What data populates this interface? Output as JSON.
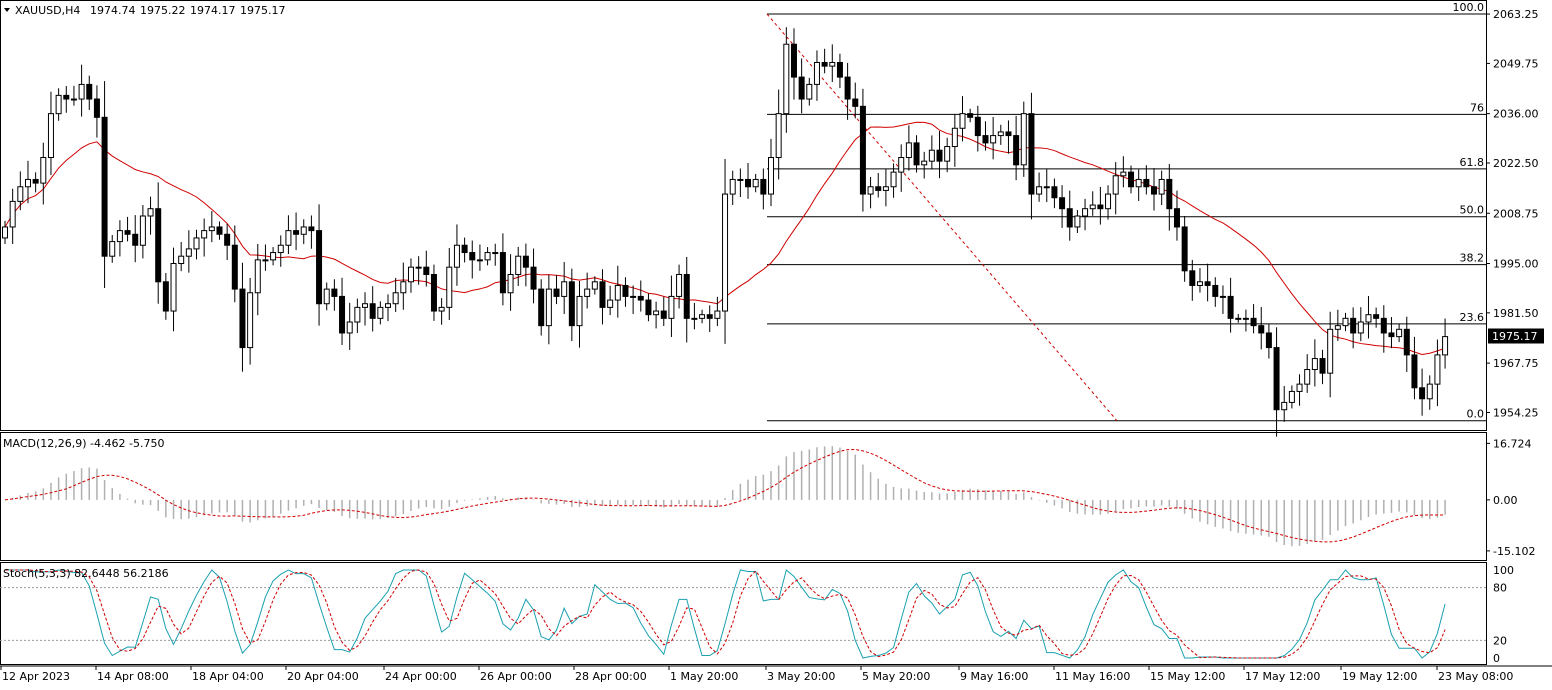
{
  "symbol_line": {
    "symbol": "XAUUSD,H4",
    "open": "1974.74",
    "high": "1975.22",
    "low": "1974.17",
    "close": "1975.17"
  },
  "current_price": "1975.17",
  "colors": {
    "background": "#ffffff",
    "candle": "#000000",
    "ma": "#d00000",
    "macd_hist": "#b0b0b0",
    "macd_signal": "#d00000",
    "stoch_main": "#1aa0b0",
    "stoch_signal": "#d00000",
    "fib_line": "#000000"
  },
  "chart_data": [
    {
      "type": "candlestick",
      "title": "XAUUSD,H4",
      "ylim": [
        1950,
        2066
      ],
      "price_ticks": [
        "2063.25",
        "2049.75",
        "2036.00",
        "2022.50",
        "2008.75",
        "1995.00",
        "1981.50",
        "1967.75",
        "1954.25"
      ],
      "time_labels": [
        "12 Apr 2023",
        "14 Apr 08:00",
        "18 Apr 04:00",
        "20 Apr 04:00",
        "24 Apr 00:00",
        "26 Apr 00:00",
        "28 Apr 00:00",
        "1 May 20:00",
        "3 May 20:00",
        "5 May 20:00",
        "9 May 16:00",
        "11 May 16:00",
        "15 May 12:00",
        "17 May 12:00",
        "19 May 12:00",
        "23 May 08:00"
      ],
      "close": [
        2005,
        2012,
        2016,
        2018,
        2017,
        2024,
        2036,
        2041,
        2040,
        2040,
        2044,
        2040,
        2035,
        1997,
        2001,
        2004,
        2003,
        2000,
        2008,
        2010,
        1990,
        1982,
        1995,
        1997,
        1999,
        2002,
        2004,
        2005,
        2003,
        2000,
        1988,
        1972,
        1987,
        1996,
        1996,
        1998,
        2000,
        2004,
        2003,
        2005,
        2004,
        1984,
        1988,
        1986,
        1976,
        1979,
        1983,
        1984,
        1980,
        1983,
        1984,
        1987,
        1990,
        1994,
        1994,
        1992,
        1982,
        1983,
        1994,
        2000,
        1998,
        1996,
        1996,
        1998,
        1998,
        1987,
        1992,
        1997,
        1994,
        1988,
        1978,
        1988,
        1986,
        1990,
        1978,
        1986,
        1988,
        1990,
        1983,
        1985,
        1989,
        1986,
        1986,
        1985,
        1981,
        1982,
        1980,
        1986,
        1992,
        1980,
        1980,
        1981,
        1980,
        1982,
        2014,
        2018,
        2018,
        2016,
        2018,
        2014,
        2024,
        2036,
        2055,
        2046,
        2040,
        2044,
        2050,
        2049,
        2050,
        2046,
        2040,
        2038,
        2014,
        2016,
        2015,
        2016,
        2020,
        2024,
        2028,
        2022,
        2023,
        2026,
        2023,
        2027,
        2032,
        2036,
        2035,
        2030,
        2028,
        2030,
        2031,
        2030,
        2022,
        2036,
        2014,
        2016,
        2016,
        2013,
        2010,
        2005,
        2008,
        2010,
        2011,
        2010,
        2014,
        2019,
        2020,
        2016,
        2018,
        2016,
        2014,
        2018,
        2010,
        2005,
        1993,
        1989,
        1990,
        1989,
        1986,
        1986,
        1980,
        1980,
        1980,
        1978,
        1976,
        1972,
        1955,
        1957,
        1960,
        1962,
        1966,
        1969,
        1965,
        1977,
        1978,
        1980,
        1976,
        1979,
        1981,
        1980,
        1976,
        1975,
        1977,
        1970,
        1961,
        1958,
        1962,
        1970,
        1975
      ]
    },
    {
      "type": "line",
      "title": "MACD(12,26,9) -4.462 -5.750",
      "indicator": "MACD",
      "params": "12,26,9",
      "main_value": "-4.462",
      "signal_value": "-5.750",
      "ylim": [
        -17.8,
        19.5
      ],
      "y_ticks": [
        "16.724",
        "0.00",
        "-15.102"
      ]
    },
    {
      "type": "line",
      "title": "Stoch(5,3,3) 82.6448 56.2186",
      "indicator": "Stoch",
      "params": "5,3,3",
      "main_value": "82.6448",
      "signal_value": "56.2186",
      "ylim": [
        0,
        100
      ],
      "y_ticks": [
        "100",
        "80",
        "20",
        "0"
      ],
      "levels": [
        80,
        20
      ]
    },
    {
      "type": "fibonacci",
      "levels": [
        "100.0",
        "76",
        "61.8",
        "50.0",
        "38.2",
        "23.6",
        "0.0"
      ],
      "level_values": [
        2063.25,
        2035.8,
        2020.9,
        2007.8,
        1994.7,
        1978.5,
        1952.0
      ]
    }
  ]
}
